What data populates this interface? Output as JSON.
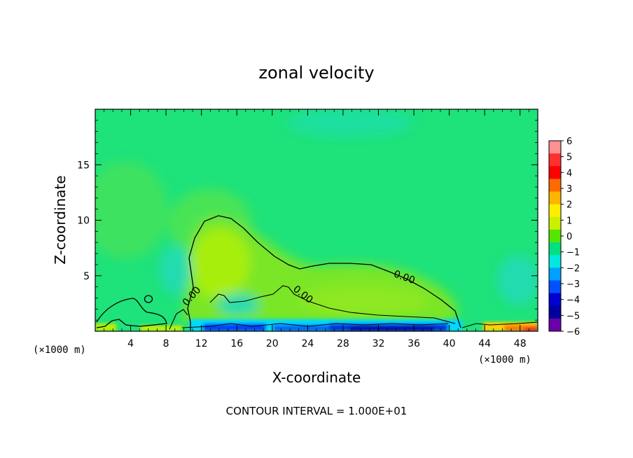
{
  "chart_data": {
    "type": "heatmap",
    "title": "zonal velocity",
    "xlabel": "X-coordinate",
    "ylabel": "Z-coordinate",
    "x_unit_label": "(×1000 m)",
    "x_unit_label_right": "(×1000 m)",
    "xlim": [
      0,
      50
    ],
    "ylim": [
      0,
      20
    ],
    "x_ticks": [
      4,
      8,
      12,
      16,
      20,
      24,
      28,
      32,
      36,
      40,
      44,
      48
    ],
    "x_tick_labels": [
      "4",
      "8",
      "12",
      "16",
      "20",
      "24",
      "28",
      "32",
      "36",
      "40",
      "44",
      "48"
    ],
    "y_ticks": [
      5,
      10,
      15
    ],
    "y_tick_labels": [
      "5",
      "10",
      "15"
    ],
    "colorbar": {
      "levels": [
        6,
        5,
        4,
        3,
        2,
        1,
        0,
        -1,
        -2,
        -3,
        -4,
        -5,
        -6
      ],
      "labels": [
        "6",
        "5",
        "4",
        "3",
        "2",
        "1",
        "0",
        "−1",
        "−2",
        "−3",
        "−4",
        "−5",
        "−6"
      ],
      "colors": [
        "#ff9090",
        "#ff3030",
        "#ff0000",
        "#ff6a00",
        "#ffb400",
        "#ffee00",
        "#c8f000",
        "#55e600",
        "#00e080",
        "#00e8e0",
        "#00a0ff",
        "#0050ff",
        "#0000d0",
        "#0000a0",
        "#6a00a8"
      ]
    },
    "contour_labels": [
      "0.00",
      "0.00",
      "0.00"
    ],
    "background_color": "#1ee27a",
    "note": "CONTOUR INTERVAL = 1.000E+01"
  }
}
